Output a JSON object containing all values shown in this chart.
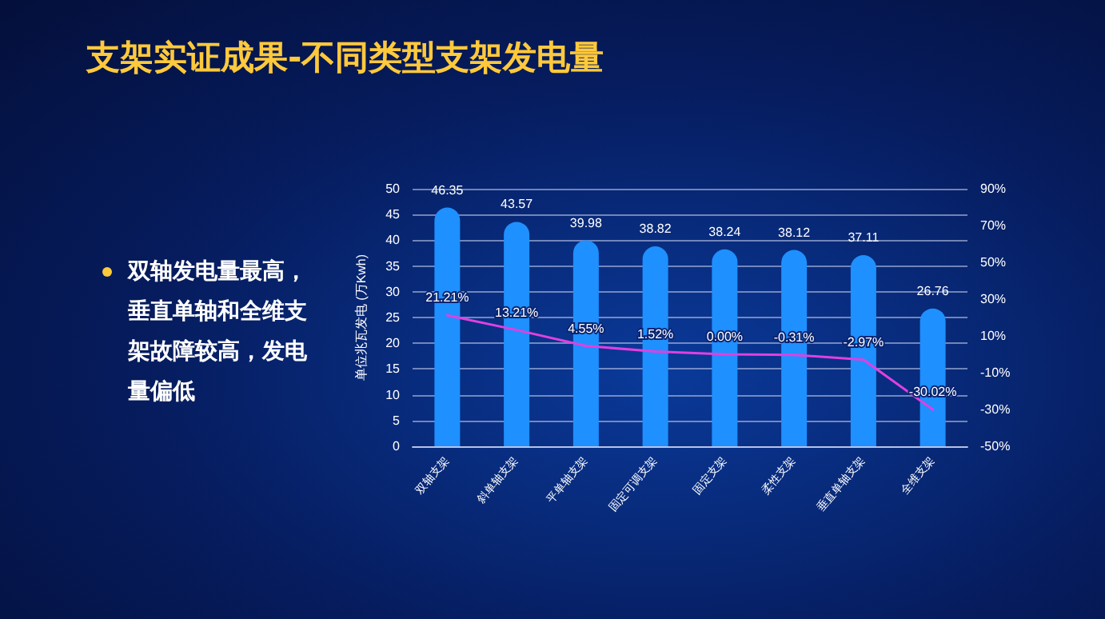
{
  "chart_data": {
    "type": "bar",
    "title": "支架实证成果-不同类型支架发电量",
    "annotations": [
      "双轴发电量最高，垂直单轴和全维支架故障较高，发电量偏低"
    ],
    "categories": [
      "双轴支架",
      "斜单轴支架",
      "平单轴支架",
      "固定可调支架",
      "固定支架",
      "柔性支架",
      "垂直单轴支架",
      "全维支架"
    ],
    "ylabel": "单位兆瓦发电 (万Kwh)",
    "series": [
      {
        "color": "#1e90ff",
        "values": [
          46.35,
          43.57,
          39.98,
          38.82,
          38.24,
          38.12,
          37.11,
          26.76
        ],
        "data_labels": true
      },
      {
        "type": "line",
        "axis": "y2",
        "color": "#e040e0",
        "values": [
          21.21,
          13.21,
          4.55,
          1.52,
          0.0,
          -0.31,
          -2.97,
          -30.02
        ],
        "value_labels": [
          "21.21%",
          "13.21%",
          "4.55%",
          "1.52%",
          "0.00%",
          "-0.31%",
          "-2.97%",
          "-30.02%"
        ]
      }
    ],
    "ylim": [
      0,
      50
    ],
    "yticks": [
      0,
      5,
      10,
      15,
      20,
      25,
      30,
      35,
      40,
      45,
      50
    ],
    "y2lim": [
      -50,
      90
    ],
    "y2ticks": [
      {
        "value": -50,
        "label": "-50%"
      },
      {
        "value": -30,
        "label": "-30%"
      },
      {
        "value": -10,
        "label": "-10%"
      },
      {
        "value": 10,
        "label": "10%"
      },
      {
        "value": 30,
        "label": "30%"
      },
      {
        "value": 50,
        "label": "50%"
      },
      {
        "value": 70,
        "label": "70%"
      },
      {
        "value": 90,
        "label": "90%"
      }
    ],
    "grid": "y",
    "marker": "none",
    "line_style": "solid"
  }
}
